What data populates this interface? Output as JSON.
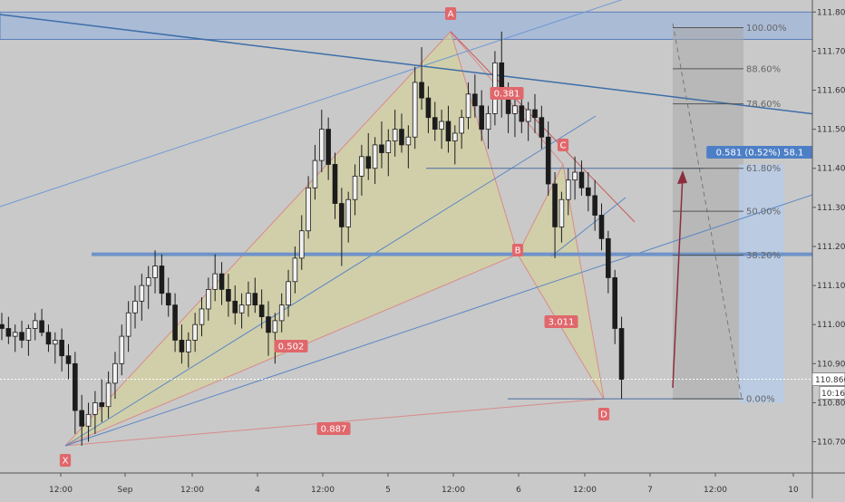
{
  "chart_data": {
    "type": "candlestick",
    "y_axis": {
      "range": [
        110.62,
        111.81
      ],
      "ticks": [
        "111.800",
        "111.700",
        "111.600",
        "111.500",
        "111.400",
        "111.300",
        "111.200",
        "111.100",
        "111.000",
        "110.900",
        "110.800",
        "110.700"
      ],
      "tick_values": [
        111.8,
        111.7,
        111.6,
        111.5,
        111.4,
        111.3,
        111.2,
        111.1,
        111.0,
        110.9,
        110.8,
        110.7
      ]
    },
    "x_axis": {
      "ticks": [
        "12:00",
        "Sep",
        "12:00",
        "4",
        "12:00",
        "5",
        "12:00",
        "6",
        "12:00",
        "7",
        "12:00",
        "10"
      ],
      "tick_x_index": [
        0,
        2,
        4,
        6,
        8,
        10,
        12,
        14,
        16,
        18,
        20,
        22
      ]
    },
    "current_price": {
      "label": "110.860",
      "value": 110.86
    },
    "countdown": "10:16",
    "pattern": {
      "points": [
        {
          "label": "X",
          "price": 110.69
        },
        {
          "label": "A",
          "price": 111.75
        },
        {
          "label": "B",
          "price": 111.18
        },
        {
          "label": "C",
          "price": 111.41
        },
        {
          "label": "D",
          "price": 110.81
        }
      ],
      "ratios": [
        "0.381",
        "0.502",
        "3.011",
        "0.887"
      ]
    },
    "fibonacci": {
      "levels": [
        {
          "label": "100.00%",
          "price": 111.76
        },
        {
          "label": "88.60%",
          "price": 111.655
        },
        {
          "label": "78.60%",
          "price": 111.565
        },
        {
          "label": "61.80%",
          "price": 111.4
        },
        {
          "label": "50.00%",
          "price": 111.29
        },
        {
          "label": "38.20%",
          "price": 111.178
        },
        {
          "label": "0.00%",
          "price": 110.81
        }
      ]
    },
    "measure_label": "0.581 (0.52%) 58.1",
    "resistance_zone": [
      111.73,
      111.8
    ],
    "support_level": 111.18,
    "candles": [
      [
        111.0,
        111.03,
        110.96,
        110.99
      ],
      [
        110.99,
        111.02,
        110.95,
        110.97
      ],
      [
        110.97,
        111.0,
        110.93,
        110.98
      ],
      [
        110.98,
        111.01,
        110.94,
        110.96
      ],
      [
        110.96,
        111.0,
        110.92,
        110.99
      ],
      [
        110.99,
        111.03,
        110.96,
        111.01
      ],
      [
        111.01,
        111.04,
        110.97,
        110.98
      ],
      [
        110.98,
        111.0,
        110.93,
        110.95
      ],
      [
        110.95,
        110.98,
        110.9,
        110.96
      ],
      [
        110.96,
        110.99,
        110.88,
        110.92
      ],
      [
        110.92,
        110.95,
        110.86,
        110.9
      ],
      [
        110.9,
        110.93,
        110.72,
        110.78
      ],
      [
        110.78,
        110.82,
        110.69,
        110.74
      ],
      [
        110.74,
        110.8,
        110.7,
        110.77
      ],
      [
        110.77,
        110.83,
        110.72,
        110.8
      ],
      [
        110.8,
        110.86,
        110.75,
        110.79
      ],
      [
        110.79,
        110.88,
        110.76,
        110.85
      ],
      [
        110.85,
        110.93,
        110.81,
        110.9
      ],
      [
        110.9,
        111.0,
        110.87,
        110.97
      ],
      [
        110.97,
        111.06,
        110.93,
        111.03
      ],
      [
        111.03,
        111.1,
        110.99,
        111.06
      ],
      [
        111.06,
        111.13,
        111.01,
        111.1
      ],
      [
        111.1,
        111.15,
        111.04,
        111.12
      ],
      [
        111.12,
        111.19,
        111.08,
        111.15
      ],
      [
        111.15,
        111.18,
        111.05,
        111.08
      ],
      [
        111.08,
        111.12,
        111.02,
        111.05
      ],
      [
        111.05,
        111.08,
        110.93,
        110.96
      ],
      [
        110.96,
        111.0,
        110.9,
        110.93
      ],
      [
        110.93,
        110.98,
        110.89,
        110.96
      ],
      [
        110.96,
        111.03,
        110.93,
        111.0
      ],
      [
        111.0,
        111.07,
        110.97,
        111.04
      ],
      [
        111.04,
        111.12,
        111.01,
        111.09
      ],
      [
        111.09,
        111.18,
        111.06,
        111.13
      ],
      [
        111.13,
        111.16,
        111.05,
        111.09
      ],
      [
        111.09,
        111.13,
        111.02,
        111.06
      ],
      [
        111.06,
        111.1,
        111.0,
        111.03
      ],
      [
        111.03,
        111.08,
        110.99,
        111.05
      ],
      [
        111.05,
        111.11,
        111.02,
        111.08
      ],
      [
        111.08,
        111.12,
        111.03,
        111.05
      ],
      [
        111.05,
        111.09,
        110.99,
        111.02
      ],
      [
        111.02,
        111.06,
        110.92,
        110.98
      ],
      [
        110.98,
        111.03,
        110.9,
        111.01
      ],
      [
        111.01,
        111.08,
        110.98,
        111.05
      ],
      [
        111.05,
        111.14,
        111.02,
        111.11
      ],
      [
        111.11,
        111.2,
        111.08,
        111.17
      ],
      [
        111.17,
        111.28,
        111.14,
        111.24
      ],
      [
        111.24,
        111.38,
        111.22,
        111.35
      ],
      [
        111.35,
        111.46,
        111.32,
        111.42
      ],
      [
        111.42,
        111.55,
        111.39,
        111.5
      ],
      [
        111.5,
        111.53,
        111.37,
        111.41
      ],
      [
        111.41,
        111.44,
        111.27,
        111.31
      ],
      [
        111.31,
        111.35,
        111.15,
        111.25
      ],
      [
        111.25,
        111.34,
        111.21,
        111.32
      ],
      [
        111.32,
        111.41,
        111.28,
        111.38
      ],
      [
        111.38,
        111.46,
        111.33,
        111.43
      ],
      [
        111.43,
        111.49,
        111.37,
        111.4
      ],
      [
        111.4,
        111.48,
        111.36,
        111.46
      ],
      [
        111.46,
        111.52,
        111.4,
        111.44
      ],
      [
        111.44,
        111.5,
        111.38,
        111.47
      ],
      [
        111.47,
        111.55,
        111.43,
        111.5
      ],
      [
        111.5,
        111.54,
        111.44,
        111.46
      ],
      [
        111.46,
        111.51,
        111.4,
        111.48
      ],
      [
        111.48,
        111.66,
        111.45,
        111.62
      ],
      [
        111.62,
        111.71,
        111.55,
        111.58
      ],
      [
        111.58,
        111.61,
        111.49,
        111.53
      ],
      [
        111.53,
        111.57,
        111.47,
        111.5
      ],
      [
        111.5,
        111.55,
        111.45,
        111.52
      ],
      [
        111.52,
        111.56,
        111.44,
        111.47
      ],
      [
        111.47,
        111.51,
        111.41,
        111.49
      ],
      [
        111.49,
        111.55,
        111.45,
        111.53
      ],
      [
        111.53,
        111.62,
        111.5,
        111.59
      ],
      [
        111.59,
        111.64,
        111.53,
        111.56
      ],
      [
        111.56,
        111.6,
        111.47,
        111.5
      ],
      [
        111.5,
        111.56,
        111.45,
        111.54
      ],
      [
        111.54,
        111.7,
        111.51,
        111.67
      ],
      [
        111.67,
        111.75,
        111.53,
        111.58
      ],
      [
        111.58,
        111.62,
        111.49,
        111.54
      ],
      [
        111.54,
        111.59,
        111.48,
        111.56
      ],
      [
        111.56,
        111.59,
        111.49,
        111.52
      ],
      [
        111.52,
        111.57,
        111.47,
        111.55
      ],
      [
        111.55,
        111.59,
        111.49,
        111.53
      ],
      [
        111.53,
        111.56,
        111.45,
        111.48
      ],
      [
        111.48,
        111.52,
        111.33,
        111.36
      ],
      [
        111.36,
        111.39,
        111.17,
        111.25
      ],
      [
        111.25,
        111.34,
        111.21,
        111.32
      ],
      [
        111.32,
        111.4,
        111.28,
        111.37
      ],
      [
        111.37,
        111.43,
        111.32,
        111.39
      ],
      [
        111.39,
        111.42,
        111.33,
        111.35
      ],
      [
        111.35,
        111.39,
        111.29,
        111.33
      ],
      [
        111.33,
        111.37,
        111.24,
        111.28
      ],
      [
        111.28,
        111.31,
        111.19,
        111.22
      ],
      [
        111.22,
        111.24,
        111.08,
        111.12
      ],
      [
        111.12,
        111.14,
        110.95,
        110.99
      ],
      [
        110.99,
        111.02,
        110.81,
        110.86
      ]
    ]
  }
}
